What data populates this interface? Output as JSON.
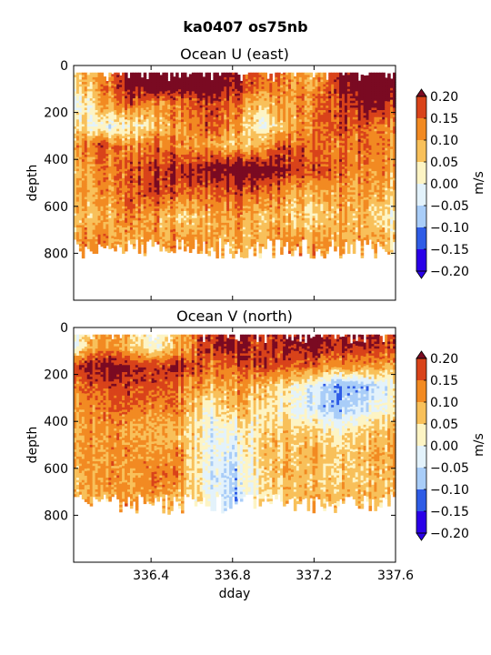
{
  "chart_data": {
    "type": "heatmap",
    "suptitle": "ka0407 os75nb",
    "xlabel": "dday",
    "xticks": [
      "336.4",
      "336.8",
      "337.2",
      "337.6"
    ],
    "xlim": [
      336.02,
      337.6
    ],
    "colorbar": {
      "label": "m/s",
      "ticks": [
        "0.20",
        "0.15",
        "0.10",
        "0.05",
        "0.00",
        "−0.05",
        "−0.10",
        "−0.15",
        "−0.20"
      ],
      "levels": [
        -0.2,
        -0.15,
        -0.1,
        -0.05,
        0.0,
        0.05,
        0.1,
        0.15,
        0.2
      ],
      "colors": [
        "#2a00e8",
        "#2f5ce6",
        "#a9cdf8",
        "#e3f2fb",
        "#fdf4c4",
        "#f8c05a",
        "#f28a22",
        "#d9431a",
        "#7a0a22"
      ]
    },
    "panels": [
      {
        "title": "Ocean U (east)",
        "ylabel": "depth",
        "yticks": [
          "0",
          "200",
          "400",
          "600",
          "800"
        ],
        "ylim": [
          1000,
          0
        ],
        "depth_range": [
          30,
          820
        ],
        "rows": [
          {
            "depth": 80,
            "values": [
              0.02,
              0.06,
              0.18,
              0.24,
              0.22,
              0.24,
              0.16,
              0.12,
              0.08,
              0.04,
              0.16,
              0.24,
              0.22
            ]
          },
          {
            "depth": 160,
            "values": [
              -0.06,
              0.04,
              0.12,
              0.06,
              0.1,
              0.14,
              0.1,
              0.04,
              0.06,
              0.1,
              0.12,
              0.2,
              0.14
            ]
          },
          {
            "depth": 260,
            "values": [
              0.02,
              -0.06,
              -0.04,
              0.02,
              0.08,
              0.12,
              0.06,
              -0.04,
              0.04,
              0.08,
              0.12,
              0.1,
              0.06
            ]
          },
          {
            "depth": 340,
            "values": [
              0.08,
              0.12,
              0.06,
              0.1,
              0.08,
              0.06,
              0.02,
              0.06,
              0.12,
              0.1,
              0.08,
              0.1,
              0.06
            ]
          },
          {
            "depth": 440,
            "values": [
              0.04,
              0.08,
              0.1,
              0.14,
              0.16,
              0.18,
              0.2,
              0.22,
              0.16,
              0.12,
              0.1,
              0.08,
              0.06
            ]
          },
          {
            "depth": 540,
            "values": [
              0.06,
              0.06,
              0.1,
              0.14,
              0.12,
              0.1,
              0.12,
              0.12,
              0.06,
              0.04,
              0.06,
              0.06,
              0.02
            ]
          },
          {
            "depth": 640,
            "values": [
              0.04,
              0.02,
              0.08,
              0.06,
              0.02,
              0.04,
              0.06,
              0.04,
              0.02,
              0.0,
              0.04,
              0.02,
              -0.04
            ]
          },
          {
            "depth": 740,
            "values": [
              0.06,
              0.08,
              0.04,
              0.06,
              0.08,
              0.06,
              0.04,
              0.06,
              0.08,
              0.06,
              0.04,
              0.06,
              0.02
            ]
          }
        ]
      },
      {
        "title": "Ocean V (north)",
        "ylabel": "depth",
        "yticks": [
          "0",
          "200",
          "400",
          "600",
          "800"
        ],
        "ylim": [
          1000,
          0
        ],
        "depth_range": [
          30,
          790
        ],
        "rows": [
          {
            "depth": 80,
            "values": [
              -0.06,
              0.06,
              0.02,
              -0.06,
              0.04,
              0.14,
              0.18,
              0.12,
              0.16,
              0.18,
              0.14,
              0.16,
              0.12
            ]
          },
          {
            "depth": 170,
            "values": [
              0.14,
              0.18,
              0.16,
              0.12,
              0.16,
              0.08,
              0.1,
              0.12,
              0.1,
              0.08,
              0.04,
              0.06,
              0.04
            ]
          },
          {
            "depth": 250,
            "values": [
              0.08,
              0.1,
              0.12,
              0.1,
              0.08,
              0.04,
              0.06,
              0.02,
              -0.02,
              -0.08,
              -0.16,
              -0.12,
              -0.04
            ]
          },
          {
            "depth": 340,
            "values": [
              0.06,
              0.08,
              0.1,
              0.06,
              0.08,
              -0.04,
              0.04,
              -0.02,
              -0.04,
              -0.1,
              -0.14,
              -0.08,
              -0.02
            ]
          },
          {
            "depth": 440,
            "values": [
              0.04,
              0.06,
              0.04,
              0.02,
              0.04,
              -0.06,
              -0.04,
              -0.02,
              0.02,
              0.0,
              -0.04,
              0.02,
              0.04
            ]
          },
          {
            "depth": 540,
            "values": [
              0.06,
              0.04,
              0.06,
              0.04,
              0.06,
              -0.06,
              -0.08,
              0.0,
              0.02,
              0.04,
              0.0,
              0.04,
              0.06
            ]
          },
          {
            "depth": 640,
            "values": [
              0.02,
              0.06,
              0.04,
              0.08,
              0.06,
              -0.08,
              -0.1,
              -0.02,
              0.04,
              0.02,
              0.0,
              0.02,
              0.04
            ]
          },
          {
            "depth": 730,
            "values": [
              0.04,
              0.02,
              0.06,
              0.04,
              0.02,
              -0.04,
              -0.12,
              -0.02,
              0.02,
              0.04,
              0.02,
              0.04,
              0.02
            ]
          }
        ]
      }
    ]
  }
}
